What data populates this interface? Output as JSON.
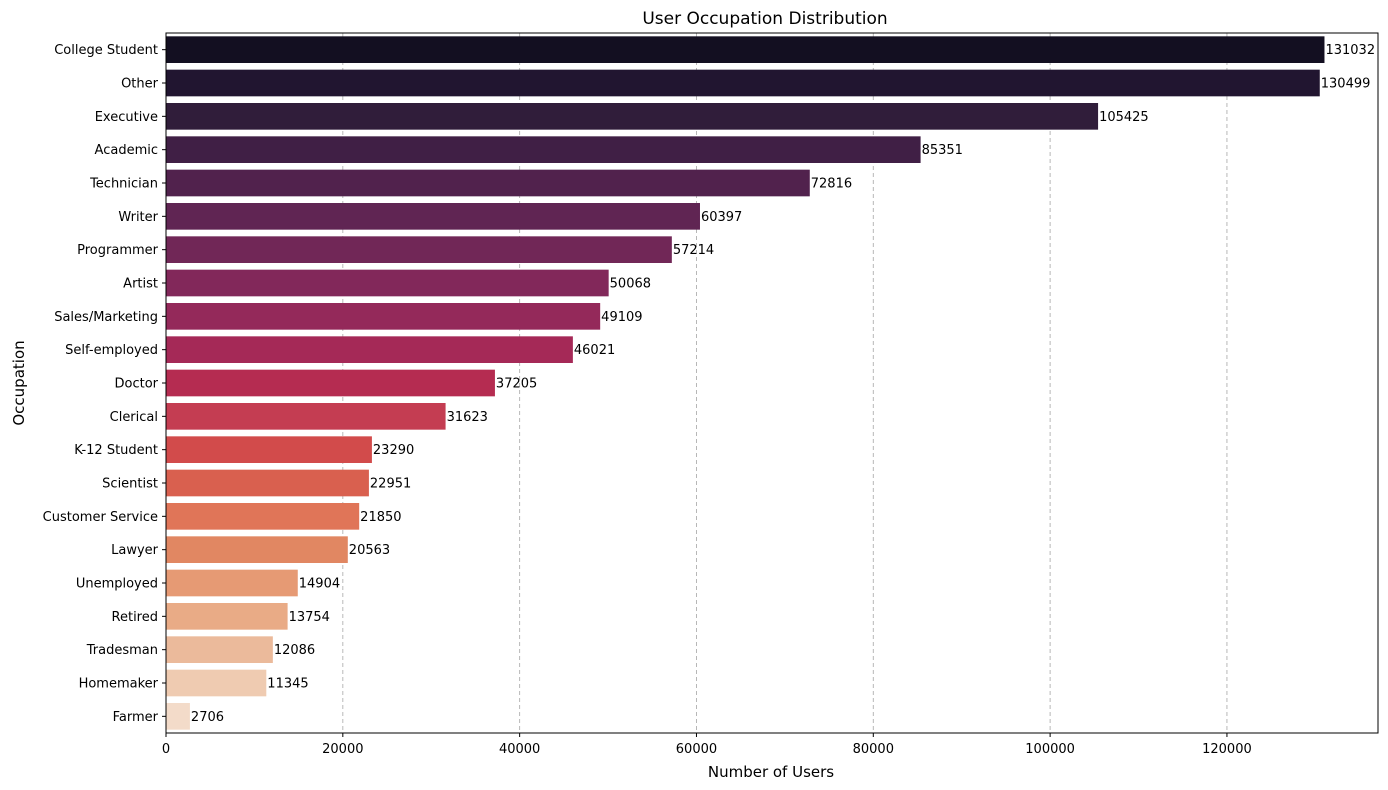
{
  "chart_data": {
    "type": "bar",
    "orientation": "horizontal",
    "title": "User Occupation Distribution",
    "xlabel": "Number of Users",
    "ylabel": "Occupation",
    "xlim": [
      0,
      137086
    ],
    "xticks": [
      0,
      20000,
      40000,
      60000,
      80000,
      100000,
      120000
    ],
    "grid": "x-dashed",
    "categories": [
      "College Student",
      "Other",
      "Executive",
      "Academic",
      "Technician",
      "Writer",
      "Programmer",
      "Artist",
      "Sales/Marketing",
      "Self-employed",
      "Doctor",
      "Clerical",
      "K-12 Student",
      "Scientist",
      "Customer Service",
      "Lawyer",
      "Unemployed",
      "Retired",
      "Tradesman",
      "Homemaker",
      "Farmer"
    ],
    "values": [
      131032,
      130499,
      105425,
      85351,
      72816,
      60397,
      57214,
      50068,
      49109,
      46021,
      37205,
      31623,
      23290,
      22951,
      21850,
      20563,
      14904,
      13754,
      12086,
      11345,
      2706
    ],
    "colors": [
      "#130f21",
      "#211530",
      "#301d3a",
      "#401f45",
      "#51224d",
      "#602553",
      "#712757",
      "#82285a",
      "#94295a",
      "#a52957",
      "#b52c51",
      "#c43d52",
      "#d24b4b",
      "#d9604f",
      "#e07558",
      "#e18762",
      "#e69a74",
      "#e9ab86",
      "#ebba9b",
      "#efcbb1",
      "#f3dbc9"
    ]
  }
}
